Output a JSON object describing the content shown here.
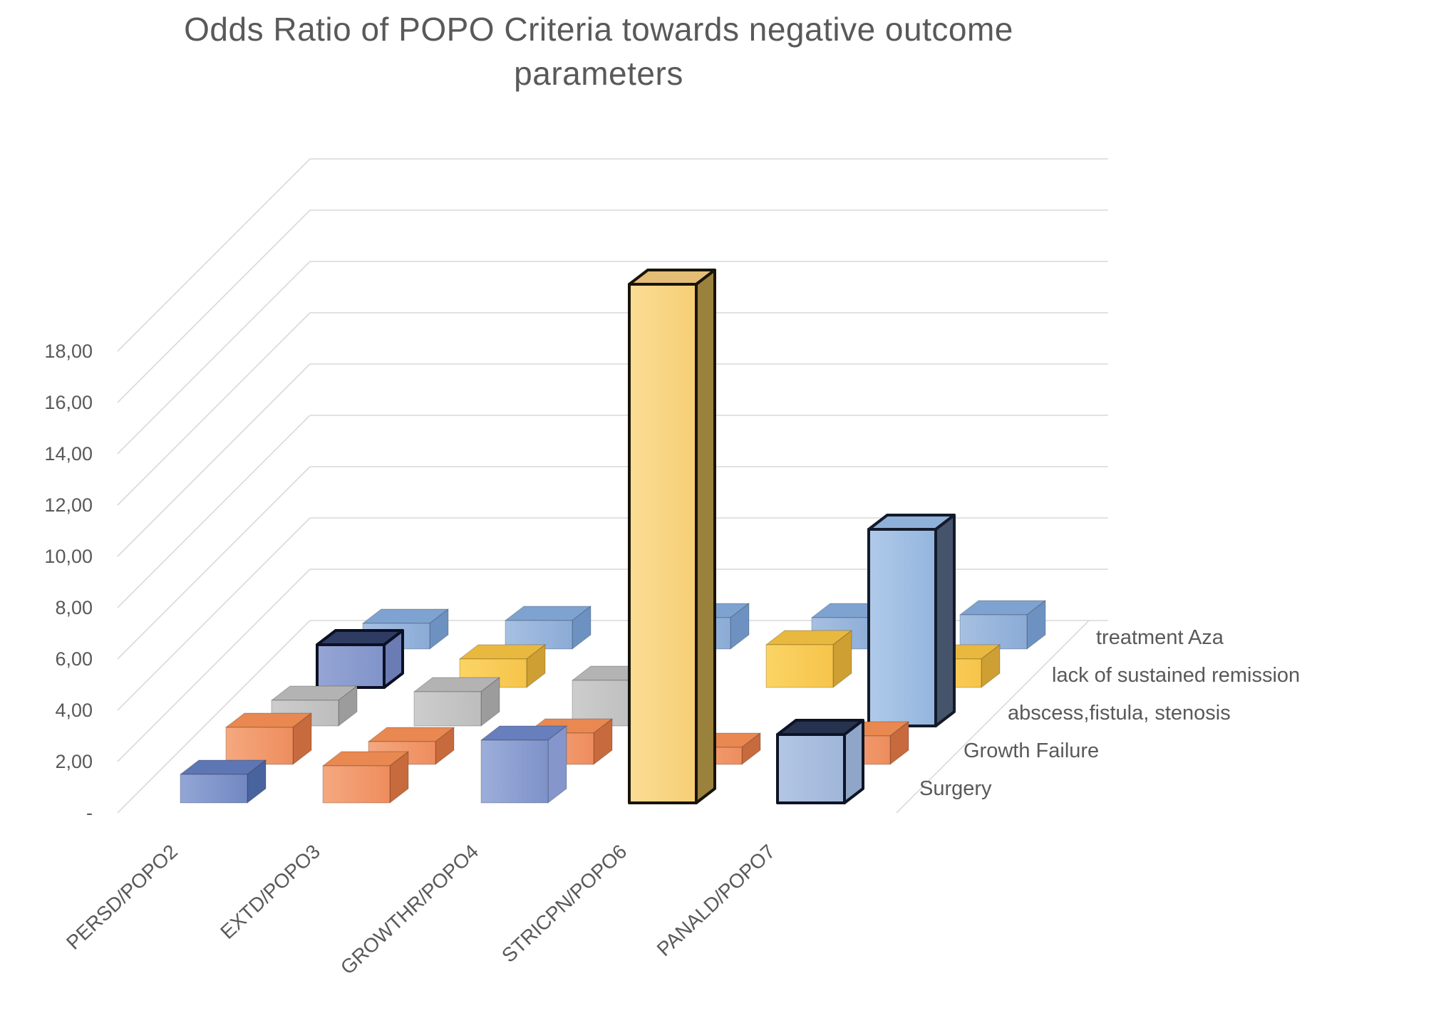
{
  "title": {
    "line1": "Odds Ratio of POPO Criteria towards negative outcome",
    "line2": "parameters"
  },
  "text_color": "#595959",
  "chart_data": {
    "type": "bar",
    "subtype": "3d-column",
    "title": "Odds Ratio of POPO Criteria towards negative outcome parameters",
    "categories": [
      "PERSD/POPO2",
      "EXTD/POPO3",
      "GROWTHR/POPO4",
      "STRICPN/POPO6",
      "PANALD/POPO7"
    ],
    "series": [
      {
        "name": "Surgery",
        "values": [
          1.0,
          1.3,
          2.2,
          18.2,
          2.4
        ],
        "colors": [
          "blue",
          "orange",
          "periwinkle",
          "yellowTall",
          "ltblueCube"
        ]
      },
      {
        "name": "Growth Failure",
        "values": [
          1.3,
          0.8,
          1.1,
          0.6,
          1.0
        ],
        "colors": [
          "orange",
          "orange",
          "orange",
          "orange",
          "orange"
        ]
      },
      {
        "name": "abscess,fistula, stenosis",
        "values": [
          0.9,
          1.2,
          1.6,
          null,
          6.9
        ],
        "colors": [
          "gray",
          "gray",
          "gray",
          null,
          "ltblueTall"
        ]
      },
      {
        "name": "lack of sustained remission",
        "values": [
          1.5,
          1.0,
          null,
          1.5,
          1.0
        ],
        "colors": [
          "navyOutline",
          "yellow",
          null,
          "yellow",
          "yellow"
        ]
      },
      {
        "name": "treatment Aza",
        "values": [
          0.9,
          1.0,
          1.1,
          1.1,
          1.2
        ],
        "colors": [
          "ltblue",
          "ltblue",
          "ltblue",
          "ltblue",
          "ltblue"
        ]
      }
    ],
    "value_axis": {
      "min": 0,
      "max": 18,
      "step": 2,
      "tick_labels": [
        "-",
        "2,00",
        "4,00",
        "6,00",
        "8,00",
        "10,00",
        "12,00",
        "14,00",
        "16,00",
        "18,00"
      ],
      "number_format": "comma-decimal"
    },
    "grid": true,
    "legend_position": "right-depth-axis",
    "highlighted_bars": [
      {
        "category": "PERSD/POPO2",
        "series": "lack of sustained remission"
      },
      {
        "category": "STRICPN/POPO6",
        "series": "Surgery"
      },
      {
        "category": "PANALD/POPO7",
        "series": "Surgery"
      },
      {
        "category": "PANALD/POPO7",
        "series": "abscess,fistula, stenosis"
      }
    ]
  },
  "palette": {
    "blue": {
      "f1": "#93A6D6",
      "f2": "#7288C2",
      "t": "#5F76B5",
      "s": "#49639E"
    },
    "periwinkle": {
      "f1": "#9CAEDA",
      "f2": "#7E92C9",
      "t": "#687FBD",
      "s": "#8496CB"
    },
    "navyOutline": {
      "f1": "#96A5D4",
      "f2": "#8093C9",
      "t": "#2E3C64",
      "s": "#6B7CB4",
      "o": "#0B1022"
    },
    "orange": {
      "f1": "#F5A87F",
      "f2": "#EE8D5E",
      "t": "#E98850",
      "s": "#C76A3D"
    },
    "gray": {
      "f1": "#CDCDCD",
      "f2": "#BDBDBD",
      "t": "#B3B3B3",
      "s": "#9C9C9C"
    },
    "yellow": {
      "f1": "#FBD465",
      "f2": "#F6C44A",
      "t": "#E9B83E",
      "s": "#CE9F33"
    },
    "yellowTall": {
      "f1": "#FBDD95",
      "f2": "#F6CE74",
      "t": "#E4BE77",
      "s": "#9A813C",
      "o": "#191409"
    },
    "ltblue": {
      "f1": "#A6C0E2",
      "f2": "#8BABD6",
      "t": "#7FA3D0",
      "s": "#6D92C2"
    },
    "ltblueCube": {
      "f1": "#B3C6E3",
      "f2": "#9FB6DA",
      "t": "#26324E",
      "s": "#8FA6C8",
      "o": "#0D1426"
    },
    "ltblueTall": {
      "f1": "#B0CAE9",
      "f2": "#93B5DE",
      "t": "#8FB0D8",
      "s": "#46546B",
      "o": "#131B2B"
    },
    "gridline": "#D9D9D9"
  }
}
